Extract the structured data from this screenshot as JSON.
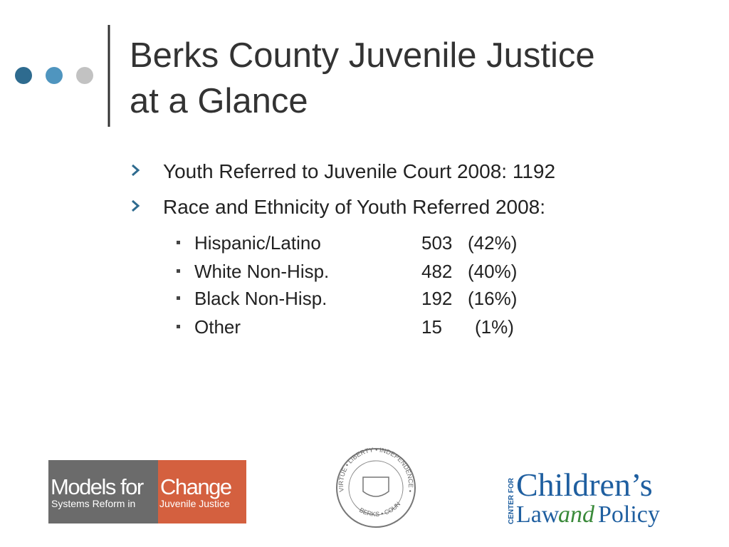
{
  "slide": {
    "title": {
      "lines": [
        "Berks County Juvenile Justice",
        "at a Glance"
      ]
    },
    "bullets": [
      {
        "text": "Youth Referred to Juvenile Court 2008: 1192"
      },
      {
        "text": "Race and Ethnicity of Youth Referred 2008:",
        "items": [
          {
            "label": "Hispanic/Latino",
            "count": "503",
            "percent": "(42%)"
          },
          {
            "label": "White Non-Hisp.",
            "count": "482",
            "percent": "(40%)"
          },
          {
            "label": "Black Non-Hisp.",
            "count": "192",
            "percent": "(16%)"
          },
          {
            "label": "Other",
            "count": "15",
            "percent": "(1%)"
          }
        ]
      }
    ]
  },
  "logos": {
    "models_for_change": {
      "left": "Models for",
      "right": "Change",
      "tag_left": "Systems Reform in",
      "tag_right": "Juvenile Justice"
    },
    "seal": {
      "top": "VIRTUE • LIBERTY • INDEPENDENCE •",
      "bottom": "BERKS • COUNTY"
    },
    "cclp": {
      "prefix": "CENTER FOR",
      "name": "Children’s",
      "law": "Law",
      "and": "and",
      "policy": "Policy"
    }
  }
}
